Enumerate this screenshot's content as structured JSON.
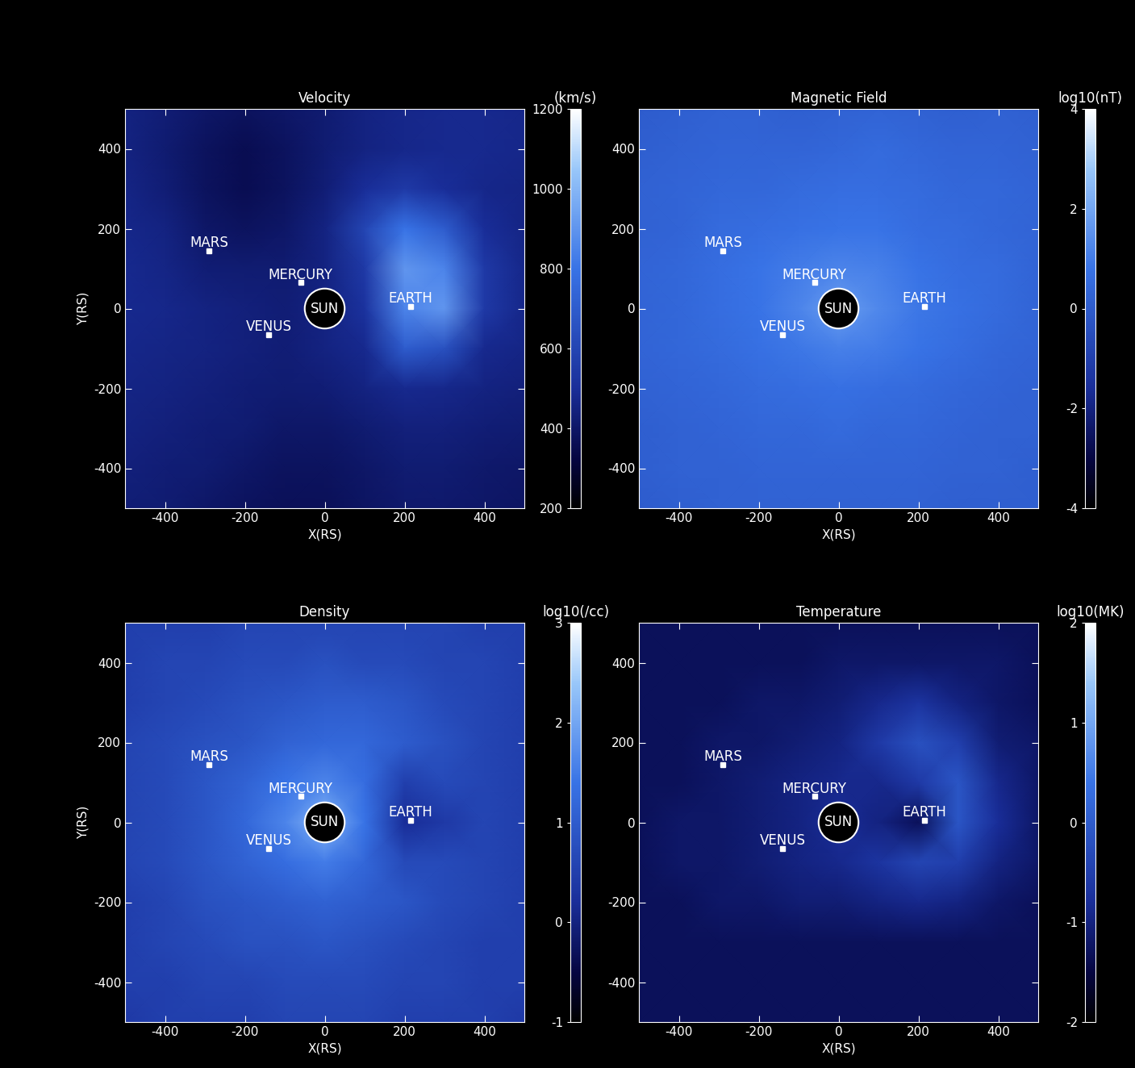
{
  "chart_data": [
    {
      "type": "heatmap",
      "title": "Velocity",
      "xlabel": "X(RS)",
      "ylabel": "Y(RS)",
      "xlim": [
        -500,
        500
      ],
      "ylim": [
        -500,
        500
      ],
      "xticks": [
        -400,
        -200,
        0,
        200,
        400
      ],
      "yticks": [
        -400,
        -200,
        0,
        200,
        400
      ],
      "x": [
        -500,
        -400,
        -300,
        -200,
        -100,
        0,
        100,
        200,
        300,
        400,
        500
      ],
      "y": [
        500,
        400,
        300,
        200,
        100,
        0,
        -100,
        -200,
        -300,
        -400,
        -500
      ],
      "cells": [
        [
          450,
          430,
          400,
          380,
          400,
          420,
          450,
          470,
          480,
          480,
          470
        ],
        [
          450,
          420,
          380,
          360,
          380,
          420,
          450,
          470,
          480,
          480,
          470
        ],
        [
          460,
          430,
          380,
          360,
          380,
          430,
          500,
          550,
          500,
          470,
          460
        ],
        [
          470,
          450,
          400,
          380,
          400,
          450,
          600,
          800,
          700,
          500,
          460
        ],
        [
          480,
          460,
          430,
          420,
          420,
          450,
          550,
          900,
          850,
          550,
          470
        ],
        [
          480,
          470,
          450,
          440,
          430,
          450,
          520,
          850,
          900,
          550,
          470
        ],
        [
          470,
          460,
          450,
          440,
          430,
          450,
          480,
          700,
          650,
          480,
          460
        ],
        [
          460,
          450,
          440,
          430,
          420,
          430,
          450,
          480,
          470,
          450,
          440
        ],
        [
          450,
          440,
          430,
          420,
          400,
          400,
          420,
          440,
          440,
          430,
          420
        ],
        [
          440,
          430,
          420,
          400,
          380,
          380,
          400,
          420,
          420,
          410,
          400
        ],
        [
          430,
          420,
          400,
          380,
          370,
          370,
          390,
          410,
          410,
          400,
          390
        ]
      ],
      "colorbar": {
        "label": "(km/s)",
        "lim": [
          200,
          1200
        ],
        "ticks": [
          200,
          400,
          600,
          800,
          1000,
          1200
        ]
      },
      "sun": {
        "label": "SUN",
        "x": 0,
        "y": 0,
        "radius": 50
      },
      "planets": [
        {
          "label": "MARS",
          "x": -290,
          "y": 145
        },
        {
          "label": "MERCURY",
          "x": -60,
          "y": 65
        },
        {
          "label": "VENUS",
          "x": -140,
          "y": -65
        },
        {
          "label": "EARTH",
          "x": 215,
          "y": 5
        }
      ]
    },
    {
      "type": "heatmap",
      "title": "Magnetic Field",
      "xlabel": "X(RS)",
      "xlim": [
        -500,
        500
      ],
      "ylim": [
        -500,
        500
      ],
      "xticks": [
        -400,
        -200,
        0,
        200,
        400
      ],
      "yticks": [
        -400,
        -200,
        0,
        200,
        400
      ],
      "x": [
        -500,
        -400,
        -300,
        -200,
        -100,
        0,
        100,
        200,
        300,
        400,
        500
      ],
      "y": [
        500,
        400,
        300,
        200,
        100,
        0,
        -100,
        -200,
        -300,
        -400,
        -500
      ],
      "cells": [
        [
          0.0,
          0.1,
          0.2,
          0.2,
          0.1,
          0.2,
          0.3,
          0.2,
          0.1,
          0.2,
          0.1
        ],
        [
          0.1,
          0.2,
          0.3,
          0.3,
          0.3,
          0.4,
          0.5,
          0.4,
          0.3,
          0.3,
          0.2
        ],
        [
          0.2,
          0.3,
          0.4,
          0.4,
          0.5,
          0.6,
          0.6,
          0.5,
          0.4,
          0.4,
          0.3
        ],
        [
          0.2,
          0.3,
          0.5,
          0.6,
          0.7,
          0.8,
          0.8,
          0.6,
          0.5,
          0.4,
          0.3
        ],
        [
          0.3,
          0.4,
          0.6,
          0.8,
          1.0,
          1.2,
          1.1,
          0.8,
          0.6,
          0.5,
          0.3
        ],
        [
          0.3,
          0.4,
          0.6,
          0.8,
          1.2,
          1.8,
          1.3,
          0.9,
          0.7,
          0.5,
          0.3
        ],
        [
          0.3,
          0.4,
          0.5,
          0.7,
          0.9,
          1.1,
          1.0,
          0.8,
          0.6,
          0.4,
          0.3
        ],
        [
          0.2,
          0.3,
          0.4,
          0.5,
          0.6,
          0.7,
          0.6,
          0.5,
          0.4,
          0.3,
          0.2
        ],
        [
          0.1,
          0.2,
          0.3,
          0.4,
          0.4,
          0.5,
          0.4,
          0.4,
          0.3,
          0.2,
          0.2
        ],
        [
          0.1,
          0.2,
          0.2,
          0.3,
          0.3,
          0.3,
          0.3,
          0.3,
          0.2,
          0.2,
          0.1
        ],
        [
          0.0,
          0.1,
          0.2,
          0.2,
          0.2,
          0.2,
          0.2,
          0.2,
          0.1,
          0.1,
          0.1
        ]
      ],
      "colorbar": {
        "label": "log10(nT)",
        "lim": [
          -4,
          4
        ],
        "ticks": [
          -4,
          -2,
          0,
          2,
          4
        ]
      },
      "sun": {
        "label": "SUN",
        "x": 0,
        "y": 0,
        "radius": 50
      },
      "planets": [
        {
          "label": "MARS",
          "x": -290,
          "y": 145
        },
        {
          "label": "MERCURY",
          "x": -60,
          "y": 65
        },
        {
          "label": "VENUS",
          "x": -140,
          "y": -65
        },
        {
          "label": "EARTH",
          "x": 215,
          "y": 5
        }
      ]
    },
    {
      "type": "heatmap",
      "title": "Density",
      "xlabel": "X(RS)",
      "ylabel": "Y(RS)",
      "xlim": [
        -500,
        500
      ],
      "ylim": [
        -500,
        500
      ],
      "xticks": [
        -400,
        -200,
        0,
        200,
        400
      ],
      "yticks": [
        -400,
        -200,
        0,
        200,
        400
      ],
      "x": [
        -500,
        -400,
        -300,
        -200,
        -100,
        0,
        100,
        200,
        300,
        400,
        500
      ],
      "y": [
        500,
        400,
        300,
        200,
        100,
        0,
        -100,
        -200,
        -300,
        -400,
        -500
      ],
      "cells": [
        [
          0.5,
          0.5,
          0.5,
          0.6,
          0.6,
          0.6,
          0.6,
          0.6,
          0.6,
          0.5,
          0.5
        ],
        [
          0.5,
          0.6,
          0.6,
          0.7,
          0.7,
          0.8,
          0.7,
          0.7,
          0.6,
          0.6,
          0.5
        ],
        [
          0.5,
          0.6,
          0.7,
          0.8,
          0.9,
          1.0,
          1.0,
          0.9,
          0.7,
          0.6,
          0.5
        ],
        [
          0.6,
          0.7,
          0.8,
          0.9,
          1.1,
          1.2,
          1.2,
          1.0,
          0.8,
          0.6,
          0.5
        ],
        [
          0.6,
          0.7,
          0.9,
          1.1,
          1.4,
          1.6,
          1.3,
          0.5,
          0.7,
          0.6,
          0.5
        ],
        [
          0.6,
          0.7,
          0.9,
          1.2,
          1.6,
          2.2,
          1.4,
          0.2,
          0.4,
          0.6,
          0.5
        ],
        [
          0.6,
          0.7,
          0.9,
          1.1,
          1.3,
          1.5,
          1.2,
          0.7,
          0.7,
          0.6,
          0.5
        ],
        [
          0.5,
          0.6,
          0.8,
          0.9,
          1.0,
          1.1,
          1.0,
          0.9,
          0.7,
          0.6,
          0.5
        ],
        [
          0.5,
          0.6,
          0.7,
          0.8,
          0.8,
          0.9,
          0.8,
          0.7,
          0.6,
          0.5,
          0.5
        ],
        [
          0.5,
          0.5,
          0.6,
          0.6,
          0.7,
          0.7,
          0.7,
          0.6,
          0.6,
          0.5,
          0.5
        ],
        [
          0.4,
          0.5,
          0.5,
          0.5,
          0.6,
          0.6,
          0.6,
          0.5,
          0.5,
          0.5,
          0.4
        ]
      ],
      "colorbar": {
        "label": "log10(/cc)",
        "lim": [
          -1,
          3
        ],
        "ticks": [
          -1,
          0,
          1,
          2,
          3
        ]
      },
      "sun": {
        "label": "SUN",
        "x": 0,
        "y": 0,
        "radius": 50
      },
      "planets": [
        {
          "label": "MARS",
          "x": -290,
          "y": 145
        },
        {
          "label": "MERCURY",
          "x": -60,
          "y": 65
        },
        {
          "label": "VENUS",
          "x": -140,
          "y": -65
        },
        {
          "label": "EARTH",
          "x": 215,
          "y": 5
        }
      ]
    },
    {
      "type": "heatmap",
      "title": "Temperature",
      "xlabel": "X(RS)",
      "xlim": [
        -500,
        500
      ],
      "ylim": [
        -500,
        500
      ],
      "xticks": [
        -400,
        -200,
        0,
        200,
        400
      ],
      "yticks": [
        -400,
        -200,
        0,
        200,
        400
      ],
      "x": [
        -500,
        -400,
        -300,
        -200,
        -100,
        0,
        100,
        200,
        300,
        400,
        500
      ],
      "y": [
        500,
        400,
        300,
        200,
        100,
        0,
        -100,
        -200,
        -300,
        -400,
        -500
      ],
      "cells": [
        [
          -1.3,
          -1.3,
          -1.3,
          -1.3,
          -1.3,
          -1.3,
          -1.3,
          -1.3,
          -1.3,
          -1.3,
          -1.3
        ],
        [
          -1.3,
          -1.3,
          -1.3,
          -1.3,
          -1.3,
          -1.2,
          -1.2,
          -1.2,
          -1.2,
          -1.2,
          -1.3
        ],
        [
          -1.3,
          -1.3,
          -1.3,
          -1.2,
          -1.2,
          -1.1,
          -0.9,
          -0.7,
          -1.0,
          -1.2,
          -1.3
        ],
        [
          -1.3,
          -1.3,
          -1.2,
          -1.2,
          -1.1,
          -1.0,
          -0.6,
          -0.2,
          -0.5,
          -1.1,
          -1.2
        ],
        [
          -1.3,
          -1.3,
          -1.2,
          -1.1,
          -1.0,
          -0.9,
          -0.9,
          -0.6,
          -0.1,
          -0.9,
          -1.2
        ],
        [
          -1.3,
          -1.2,
          -1.2,
          -1.1,
          -1.0,
          -0.8,
          -1.0,
          -1.3,
          -0.1,
          -0.8,
          -1.2
        ],
        [
          -1.3,
          -1.2,
          -1.2,
          -1.1,
          -1.0,
          -0.9,
          -0.7,
          -0.4,
          -0.5,
          -1.0,
          -1.2
        ],
        [
          -1.3,
          -1.3,
          -1.2,
          -1.2,
          -1.1,
          -1.1,
          -1.0,
          -0.9,
          -1.0,
          -1.2,
          -1.3
        ],
        [
          -1.3,
          -1.3,
          -1.3,
          -1.3,
          -1.3,
          -1.3,
          -1.3,
          -1.3,
          -1.3,
          -1.3,
          -1.3
        ],
        [
          -1.3,
          -1.3,
          -1.3,
          -1.3,
          -1.3,
          -1.3,
          -1.3,
          -1.3,
          -1.3,
          -1.3,
          -1.3
        ],
        [
          -1.3,
          -1.3,
          -1.3,
          -1.3,
          -1.3,
          -1.3,
          -1.3,
          -1.3,
          -1.3,
          -1.3,
          -1.3
        ]
      ],
      "colorbar": {
        "label": "log10(MK)",
        "lim": [
          -2,
          2
        ],
        "ticks": [
          -2,
          -1,
          0,
          1,
          2
        ]
      },
      "sun": {
        "label": "SUN",
        "x": 0,
        "y": 0,
        "radius": 50
      },
      "planets": [
        {
          "label": "MARS",
          "x": -290,
          "y": 145
        },
        {
          "label": "MERCURY",
          "x": -60,
          "y": 65
        },
        {
          "label": "VENUS",
          "x": -140,
          "y": -65
        },
        {
          "label": "EARTH",
          "x": 215,
          "y": 5
        }
      ]
    }
  ]
}
